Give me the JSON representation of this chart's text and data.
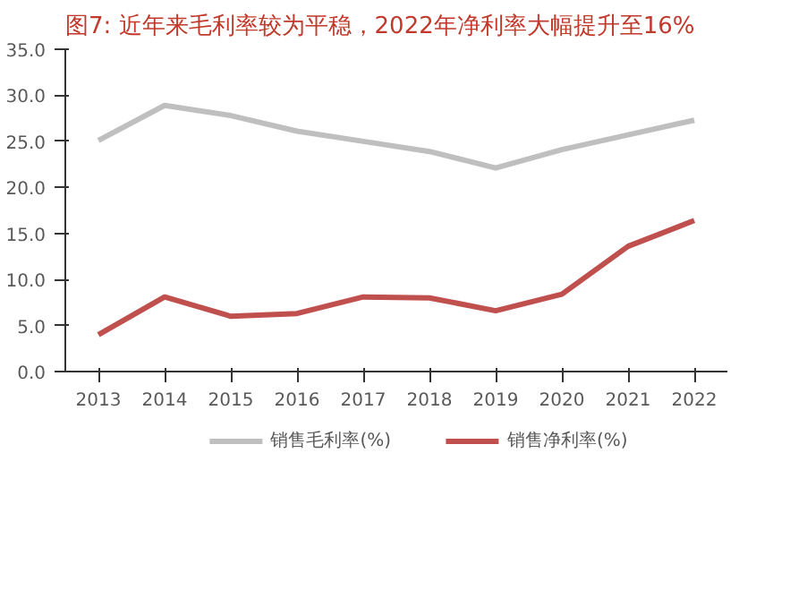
{
  "chart_data": {
    "type": "line",
    "title": "图7:  近年来毛利率较为平稳，2022年净利率大幅提升至16%",
    "categories": [
      "2013",
      "2014",
      "2015",
      "2016",
      "2017",
      "2018",
      "2019",
      "2020",
      "2021",
      "2022"
    ],
    "series": [
      {
        "name": "销售毛利率(%)",
        "color": "#bfbfbf",
        "values": [
          25.1,
          28.9,
          27.8,
          26.1,
          25.0,
          23.9,
          22.1,
          24.1,
          25.7,
          27.3
        ]
      },
      {
        "name": "销售净利率(%)",
        "color": "#c0504d",
        "values": [
          4.0,
          8.1,
          6.0,
          6.3,
          8.1,
          8.0,
          6.6,
          8.4,
          13.6,
          16.4
        ]
      }
    ],
    "ylim": [
      0,
      35
    ],
    "yticks": [
      {
        "value": 0,
        "label": "0.0"
      },
      {
        "value": 5,
        "label": "5.0"
      },
      {
        "value": 10,
        "label": "10.0"
      },
      {
        "value": 15,
        "label": "15.0"
      },
      {
        "value": 20,
        "label": "20.0"
      },
      {
        "value": 25,
        "label": "25.0"
      },
      {
        "value": 30,
        "label": "30.0"
      },
      {
        "value": 35,
        "label": "35.0"
      }
    ],
    "grid": false,
    "legend": "bottom",
    "marker": "none",
    "line_style": "solid"
  }
}
